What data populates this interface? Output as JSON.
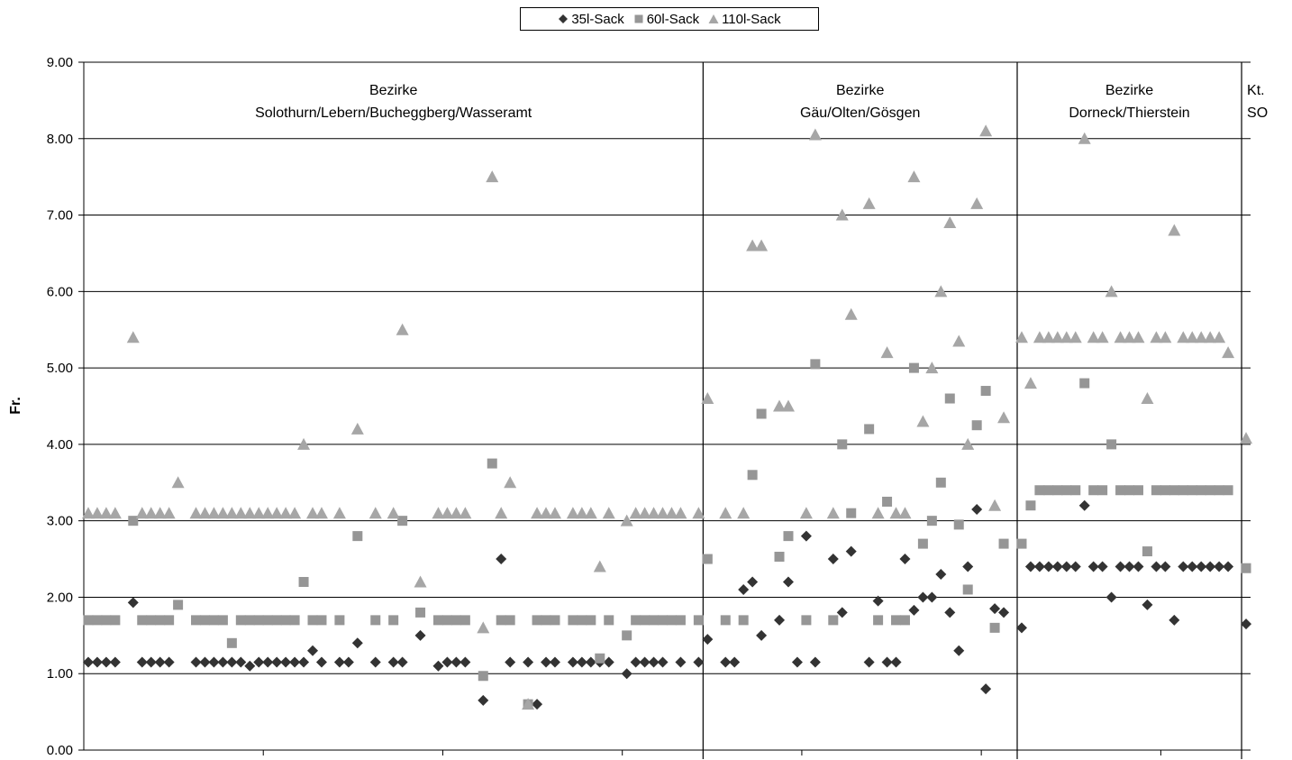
{
  "legend": {
    "items": [
      {
        "label": "35l-Sack",
        "color": "#333333",
        "marker": "diamond"
      },
      {
        "label": "60l-Sack",
        "color": "#969696",
        "marker": "square"
      },
      {
        "label": "110l-Sack",
        "color": "#a6a6a6",
        "marker": "triangle"
      }
    ]
  },
  "chart_data": {
    "type": "scatter",
    "ylabel": "Fr.",
    "ylim": [
      0,
      9
    ],
    "yticks": [
      "0.00",
      "1.00",
      "2.00",
      "3.00",
      "4.00",
      "5.00",
      "6.00",
      "7.00",
      "8.00",
      "9.00"
    ],
    "xlim": [
      0.5,
      130.5
    ],
    "grid": "horizontal",
    "legend_position": "top-center",
    "regions": [
      {
        "line1": "Bezirke",
        "line2": "Solothurn/Lebern/Bucheggberg/Wasseramt",
        "start": 0.5,
        "end": 69.5
      },
      {
        "line1": "Bezirke",
        "line2": "Gäu/Olten/Gösgen",
        "start": 69.5,
        "end": 104.5
      },
      {
        "line1": "Bezirke",
        "line2": "Dorneck/Thierstein",
        "start": 104.5,
        "end": 129.5
      },
      {
        "line1": "Kt.",
        "line2": "SO",
        "start": 129.5,
        "end": 130.5
      }
    ],
    "series": [
      {
        "name": "35l-Sack",
        "color": "#333333",
        "marker": "diamond",
        "x": [
          1,
          2,
          3,
          4,
          6,
          7,
          8,
          9,
          10,
          13,
          14,
          15,
          16,
          17,
          18,
          19,
          20,
          21,
          22,
          23,
          24,
          25,
          26,
          27,
          29,
          30,
          31,
          33,
          35,
          36,
          38,
          40,
          41,
          42,
          43,
          45,
          47,
          48,
          50,
          51,
          52,
          53,
          55,
          56,
          57,
          58,
          59,
          61,
          62,
          63,
          64,
          65,
          67,
          69,
          70,
          72,
          73,
          74,
          75,
          76,
          78,
          79,
          80,
          81,
          82,
          84,
          85,
          86,
          88,
          89,
          90,
          91,
          92,
          93,
          94,
          95,
          96,
          97,
          98,
          99,
          100,
          101,
          102,
          103,
          105,
          106,
          107,
          108,
          109,
          110,
          111,
          112,
          113,
          114,
          115,
          116,
          117,
          118,
          119,
          120,
          121,
          122,
          123,
          124,
          125,
          126,
          127,
          128,
          130
        ],
        "y": [
          1.15,
          1.15,
          1.15,
          1.15,
          1.93,
          1.15,
          1.15,
          1.15,
          1.15,
          1.15,
          1.15,
          1.15,
          1.15,
          1.15,
          1.15,
          1.1,
          1.15,
          1.15,
          1.15,
          1.15,
          1.15,
          1.15,
          1.3,
          1.15,
          1.15,
          1.15,
          1.4,
          1.15,
          1.15,
          1.15,
          1.5,
          1.1,
          1.15,
          1.15,
          1.15,
          0.65,
          2.5,
          1.15,
          1.15,
          0.6,
          1.15,
          1.15,
          1.15,
          1.15,
          1.15,
          1.15,
          1.15,
          1.0,
          1.15,
          1.15,
          1.15,
          1.15,
          1.15,
          1.15,
          1.45,
          1.15,
          1.15,
          2.1,
          2.2,
          1.5,
          1.7,
          2.2,
          1.15,
          2.8,
          1.15,
          2.5,
          1.8,
          2.6,
          1.15,
          1.95,
          1.15,
          1.15,
          2.5,
          1.83,
          2.0,
          2.0,
          2.3,
          1.8,
          1.3,
          2.4,
          3.15,
          0.8,
          1.85,
          1.8,
          1.6,
          2.4,
          2.4,
          2.4,
          2.4,
          2.4,
          2.4,
          3.2,
          2.4,
          2.4,
          2.0,
          2.4,
          2.4,
          2.4,
          1.9,
          2.4,
          2.4,
          1.7,
          2.4,
          2.4,
          2.4,
          2.4,
          2.4,
          2.4,
          1.65
        ]
      },
      {
        "name": "60l-Sack",
        "color": "#969696",
        "marker": "square",
        "x": [
          1,
          2,
          3,
          4,
          6,
          7,
          8,
          9,
          10,
          11,
          13,
          14,
          15,
          16,
          17,
          18,
          19,
          20,
          21,
          22,
          23,
          24,
          25,
          26,
          27,
          29,
          31,
          33,
          35,
          36,
          38,
          40,
          41,
          42,
          43,
          45,
          46,
          47,
          48,
          50,
          51,
          52,
          53,
          55,
          56,
          57,
          58,
          59,
          61,
          62,
          63,
          64,
          65,
          66,
          67,
          69,
          70,
          72,
          74,
          75,
          76,
          78,
          79,
          81,
          82,
          84,
          85,
          86,
          88,
          89,
          90,
          91,
          92,
          93,
          94,
          95,
          96,
          97,
          98,
          99,
          100,
          101,
          102,
          103,
          105,
          106,
          107,
          108,
          109,
          110,
          111,
          112,
          113,
          114,
          115,
          116,
          117,
          118,
          119,
          120,
          121,
          122,
          123,
          124,
          125,
          126,
          127,
          128,
          130
        ],
        "y": [
          1.7,
          1.7,
          1.7,
          1.7,
          3.0,
          1.7,
          1.7,
          1.7,
          1.7,
          1.9,
          1.7,
          1.7,
          1.7,
          1.7,
          1.4,
          1.7,
          1.7,
          1.7,
          1.7,
          1.7,
          1.7,
          1.7,
          2.2,
          1.7,
          1.7,
          1.7,
          2.8,
          1.7,
          1.7,
          3.0,
          1.8,
          1.7,
          1.7,
          1.7,
          1.7,
          0.97,
          3.75,
          1.7,
          1.7,
          0.6,
          1.7,
          1.7,
          1.7,
          1.7,
          1.7,
          1.7,
          1.2,
          1.7,
          1.5,
          1.7,
          1.7,
          1.7,
          1.7,
          1.7,
          1.7,
          1.7,
          2.5,
          1.7,
          1.7,
          3.6,
          4.4,
          2.53,
          2.8,
          1.7,
          5.05,
          1.7,
          4.0,
          3.1,
          4.2,
          1.7,
          3.25,
          1.7,
          1.7,
          5.0,
          2.7,
          3.0,
          3.5,
          4.6,
          2.95,
          2.1,
          4.25,
          4.7,
          1.6,
          2.7,
          2.7,
          3.2,
          3.4,
          3.4,
          3.4,
          3.4,
          3.4,
          4.8,
          3.4,
          3.4,
          4.0,
          3.4,
          3.4,
          3.4,
          2.6,
          3.4,
          3.4,
          3.4,
          3.4,
          3.4,
          3.4,
          3.4,
          3.4,
          3.4,
          2.38
        ]
      },
      {
        "name": "110l-Sack",
        "color": "#a6a6a6",
        "marker": "triangle",
        "x": [
          1,
          2,
          3,
          4,
          6,
          7,
          8,
          9,
          10,
          11,
          13,
          14,
          15,
          16,
          17,
          18,
          19,
          20,
          21,
          22,
          23,
          24,
          25,
          26,
          27,
          29,
          31,
          33,
          35,
          36,
          38,
          40,
          41,
          42,
          43,
          45,
          46,
          47,
          48,
          50,
          51,
          52,
          53,
          55,
          56,
          57,
          58,
          59,
          61,
          62,
          63,
          64,
          65,
          66,
          67,
          69,
          70,
          72,
          74,
          75,
          76,
          78,
          79,
          81,
          82,
          84,
          85,
          86,
          88,
          89,
          90,
          91,
          92,
          93,
          94,
          95,
          96,
          97,
          98,
          99,
          100,
          101,
          102,
          103,
          105,
          106,
          107,
          108,
          109,
          110,
          111,
          112,
          113,
          114,
          115,
          116,
          117,
          118,
          119,
          120,
          121,
          122,
          123,
          124,
          125,
          126,
          127,
          128,
          130
        ],
        "y": [
          3.1,
          3.1,
          3.1,
          3.1,
          5.4,
          3.1,
          3.1,
          3.1,
          3.1,
          3.5,
          3.1,
          3.1,
          3.1,
          3.1,
          3.1,
          3.1,
          3.1,
          3.1,
          3.1,
          3.1,
          3.1,
          3.1,
          4.0,
          3.1,
          3.1,
          3.1,
          4.2,
          3.1,
          3.1,
          5.5,
          2.2,
          3.1,
          3.1,
          3.1,
          3.1,
          1.6,
          7.5,
          3.1,
          3.5,
          0.6,
          3.1,
          3.1,
          3.1,
          3.1,
          3.1,
          3.1,
          2.4,
          3.1,
          3.0,
          3.1,
          3.1,
          3.1,
          3.1,
          3.1,
          3.1,
          3.1,
          4.6,
          3.1,
          3.1,
          6.6,
          6.6,
          4.5,
          4.5,
          3.1,
          8.05,
          3.1,
          7.0,
          5.7,
          7.15,
          3.1,
          5.2,
          3.1,
          3.1,
          7.5,
          4.3,
          5.0,
          6.0,
          6.9,
          5.35,
          4.0,
          7.15,
          8.1,
          3.2,
          4.35,
          5.4,
          4.8,
          5.4,
          5.4,
          5.4,
          5.4,
          5.4,
          8.0,
          5.4,
          5.4,
          6.0,
          5.4,
          5.4,
          5.4,
          4.6,
          5.4,
          5.4,
          6.8,
          5.4,
          5.4,
          5.4,
          5.4,
          5.4,
          5.2,
          4.08
        ]
      }
    ]
  }
}
